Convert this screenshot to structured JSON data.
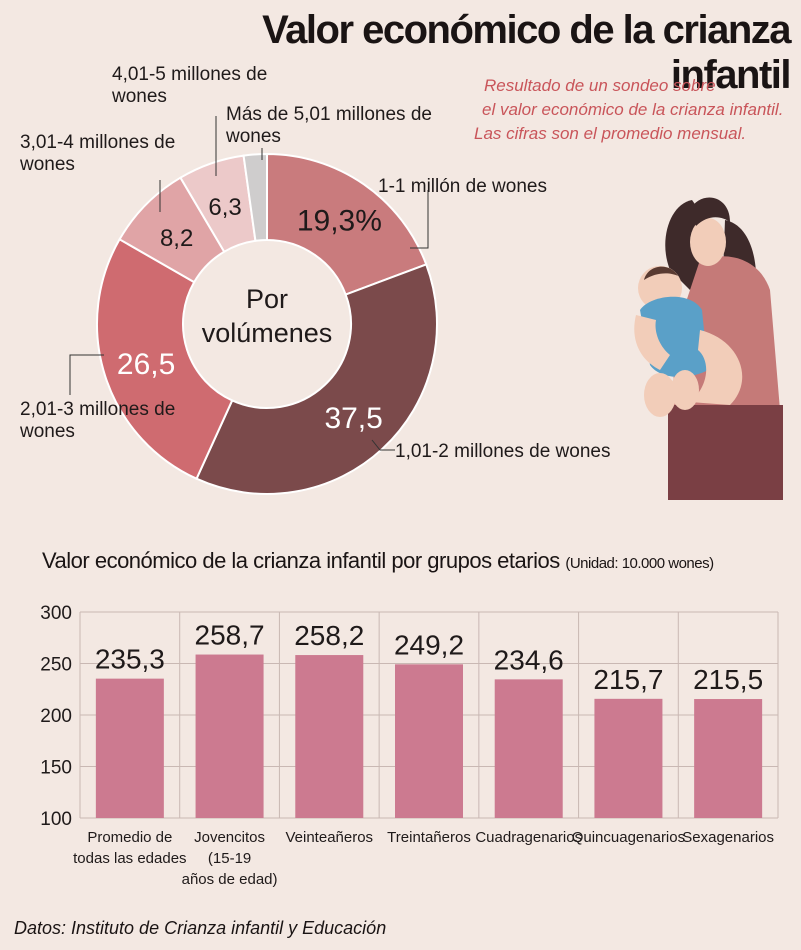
{
  "title": "Valor económico de la crianza infantil",
  "note_lines": [
    "Resultado de un sondeo sobre",
    "el valor económico de la crianza infantil.",
    "Las cifras son el promedio mensual."
  ],
  "donut": {
    "center_label_lines": [
      "Por",
      "volúmenes"
    ],
    "slices": [
      {
        "label": "1-1 millón de wones",
        "value": 19.3,
        "display": "19,3%",
        "color": "#c97b7d"
      },
      {
        "label": "1,01-2 millones de wones",
        "value": 37.5,
        "display": "37,5",
        "color": "#7b4a4b"
      },
      {
        "label": "2,01-3 millones de wones",
        "value": 26.5,
        "display": "26,5",
        "color": "#cf6b70"
      },
      {
        "label": "3,01-4 millones de wones",
        "value": 8.2,
        "display": "8,2",
        "color": "#e0a4a6"
      },
      {
        "label": "4,01-5 millones de wones",
        "value": 6.3,
        "display": "6,3",
        "color": "#ecc9c9"
      },
      {
        "label": "Más de 5,01 millones de wones",
        "value": 2.2,
        "display": "",
        "color": "#cfcdcd"
      }
    ],
    "callouts": [
      {
        "lines": [
          "1-1 millón de wones"
        ]
      },
      {
        "lines": [
          "1,01-2 millones de wones"
        ]
      },
      {
        "lines": [
          "2,01-3 millones de",
          "wones"
        ]
      },
      {
        "lines": [
          "3,01-4 millones de",
          "wones"
        ]
      },
      {
        "lines": [
          "4,01-5 millones de",
          "wones"
        ]
      },
      {
        "lines": [
          "Más de 5,01 millones de",
          "wones"
        ]
      }
    ]
  },
  "bar_chart_title": "Valor económico de la crianza infantil por grupos etarios",
  "bar_chart_unit": "(Unidad: 10.000 wones)",
  "chart_data": [
    {
      "type": "pie",
      "title": "Por volúmenes",
      "categories": [
        "1-1 millón de wones",
        "1,01-2 millones de wones",
        "2,01-3 millones de wones",
        "3,01-4 millones de wones",
        "4,01-5 millones de wones",
        "Más de 5,01 millones de wones"
      ],
      "values": [
        19.3,
        37.5,
        26.5,
        8.2,
        6.3,
        2.2
      ]
    },
    {
      "type": "bar",
      "title": "Valor económico de la crianza infantil por grupos etarios",
      "categories": [
        "Promedio de todas las edades",
        "Jovencitos (15-19 años de edad)",
        "Veinteañeros",
        "Treintañeros",
        "Cuadragenarios",
        "Quincuagenarios",
        "Sexagenarios"
      ],
      "category_lines": [
        [
          "Promedio de",
          "todas las edades"
        ],
        [
          "Jovencitos",
          "(15-19",
          "años de edad)"
        ],
        [
          "Veinteañeros"
        ],
        [
          "Treintañeros"
        ],
        [
          "Cuadragenarios"
        ],
        [
          "Quincuagenarios"
        ],
        [
          "Sexagenarios"
        ]
      ],
      "values": [
        235.3,
        258.7,
        258.2,
        249.2,
        234.6,
        215.7,
        215.5
      ],
      "value_labels": [
        "235,3",
        "258,7",
        "258,2",
        "249,2",
        "234,6",
        "215,7",
        "215,5"
      ],
      "yticks": [
        100,
        150,
        200,
        250,
        300
      ],
      "ylim": [
        100,
        300
      ],
      "grid": true,
      "color": "#cc7a90"
    }
  ],
  "source": "Datos: Instituto de Crianza infantil y Educación"
}
